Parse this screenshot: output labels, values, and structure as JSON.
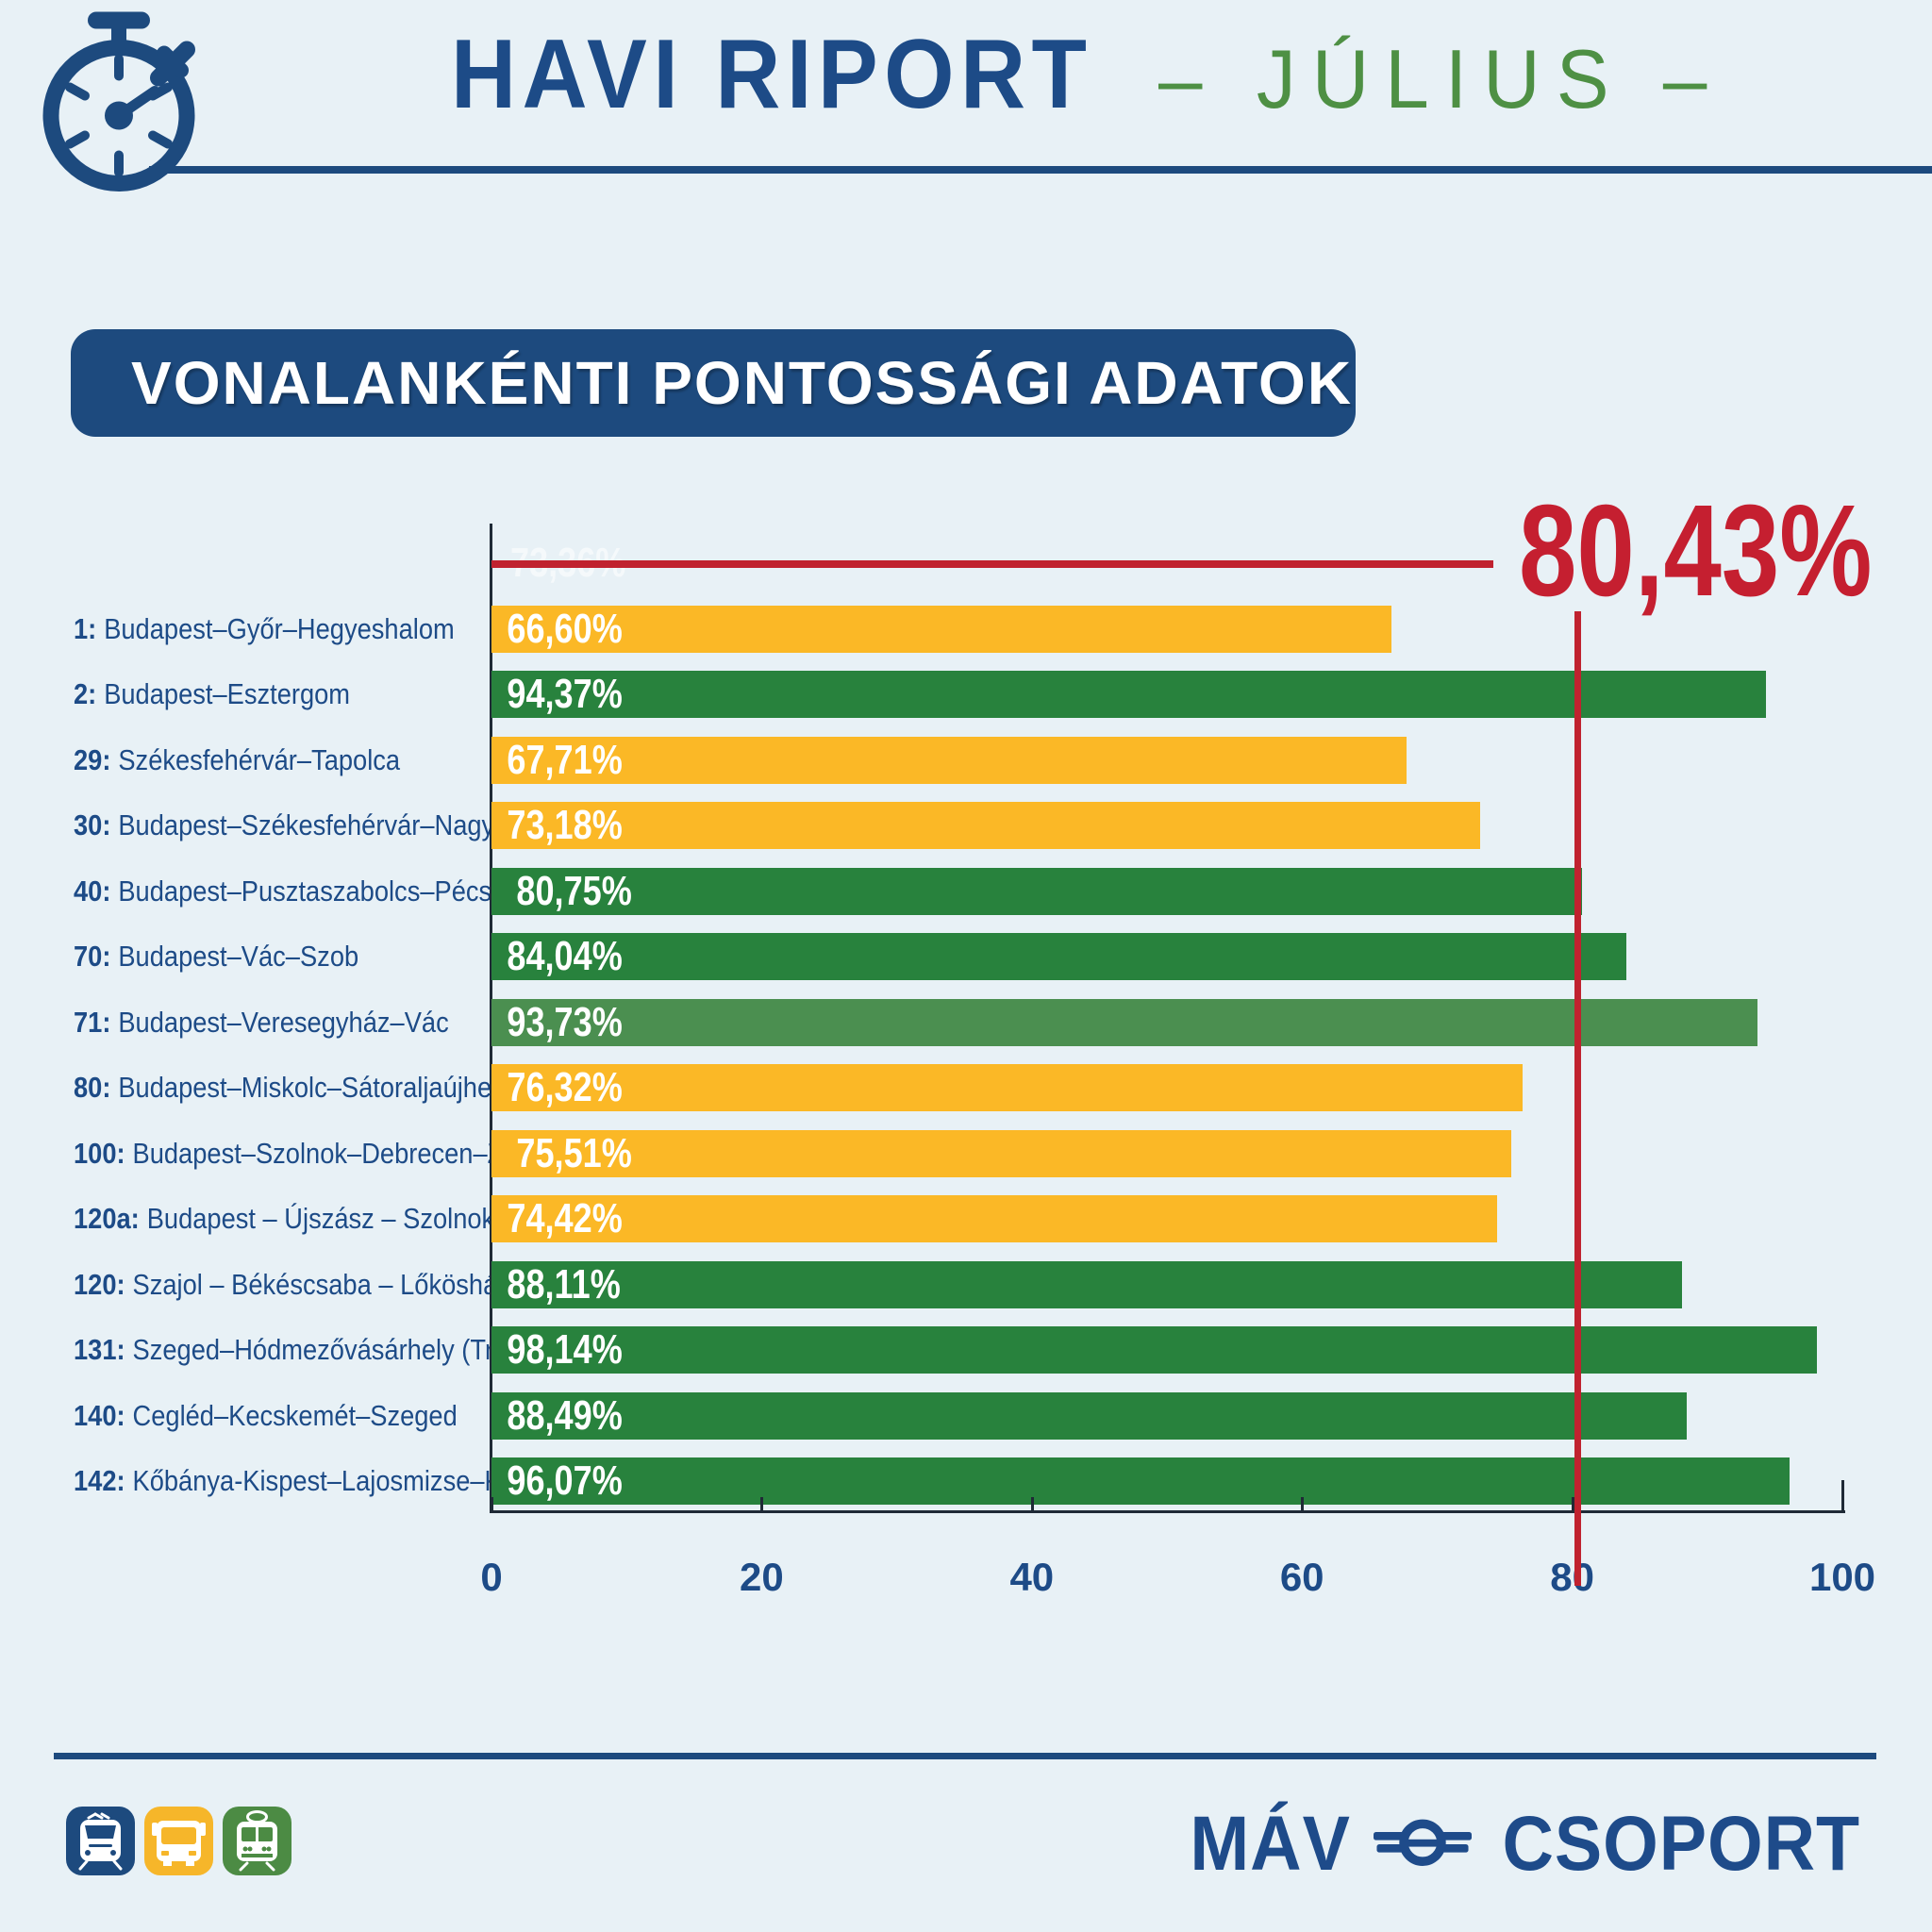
{
  "page": {
    "background": "#e8f1f6"
  },
  "header": {
    "title": "HAVI RIPORT",
    "subtitle": "– JÚLIUS –",
    "title_color": "#1d4b87",
    "subtitle_color": "#4e9044",
    "icon": "stopwatch-icon"
  },
  "section_heading": {
    "text": "VONALANKÉNTI PONTOSSÁGI ADATOK",
    "bg": "#1d4a7e",
    "text_color": "#ffffff"
  },
  "chart_data": {
    "type": "bar",
    "orientation": "horizontal",
    "title": "VONALANKÉNTI PONTOSSÁGI ADATOK",
    "xlim": [
      0,
      100
    ],
    "x_ticks": [
      "0",
      "20",
      "40",
      "60",
      "80",
      "100"
    ],
    "grid": false,
    "reference_line": {
      "value": 80.43,
      "label": "80,43%",
      "color": "#c51f30"
    },
    "hidden_leading_bar": {
      "label": "73,36%",
      "value": 73.36
    },
    "bar_colors": {
      "yellow": "#fbb826",
      "green": "#28823d",
      "light_green": "#4b8f50"
    },
    "value_text_color": "#ffffff",
    "rows": [
      {
        "line": "1:",
        "route": "Budapest–Győr–Hegyeshalom",
        "value": 66.6,
        "label": "66,60%",
        "color": "yellow"
      },
      {
        "line": "2:",
        "route": "Budapest–Esztergom",
        "value": 94.37,
        "label": "94,37%",
        "color": "green"
      },
      {
        "line": "29:",
        "route": "Székesfehérvár–Tapolca",
        "value": 67.71,
        "label": "67,71%",
        "color": "yellow"
      },
      {
        "line": "30:",
        "route": "Budapest–Székesfehérvár–Nagykanizsa",
        "value": 73.18,
        "label": "73,18%",
        "color": "yellow"
      },
      {
        "line": "40:",
        "route": "Budapest–Pusztaszabolcs–Pécs",
        "value": 80.75,
        "label": " 80,75%",
        "color": "green"
      },
      {
        "line": "70:",
        "route": "Budapest–Vác–Szob",
        "value": 84.04,
        "label": "84,04%",
        "color": "green"
      },
      {
        "line": "71:",
        "route": "Budapest–Veresegyház–Vác",
        "value": 93.73,
        "label": "93,73%",
        "color": "light_green"
      },
      {
        "line": "80:",
        "route": "Budapest–Miskolc–Sátoraljaújhely",
        "value": 76.32,
        "label": "76,32%",
        "color": "yellow"
      },
      {
        "line": "100:",
        "route": "Budapest–Szolnok–Debrecen–Záhony",
        "value": 75.51,
        "label": " 75,51%",
        "color": "yellow"
      },
      {
        "line": "120a:",
        "route": "Budapest – Újszász – Szolnok",
        "value": 74.42,
        "label": "74,42%",
        "color": "yellow"
      },
      {
        "line": "120:",
        "route": "Szajol – Békéscsaba – Lőkösháza",
        "value": 88.11,
        "label": "88,11%",
        "color": "green"
      },
      {
        "line": "131:",
        "route": "Szeged–Hódmezővásárhely (TramTrain)",
        "value": 98.14,
        "label": "98,14%",
        "color": "green"
      },
      {
        "line": "140:",
        "route": "Cegléd–Kecskemét–Szeged",
        "value": 88.49,
        "label": "88,49%",
        "color": "green"
      },
      {
        "line": "142:",
        "route": "Kőbánya-Kispest–Lajosmizse–Kecskemét",
        "value": 96.07,
        "label": "96,07%",
        "color": "green"
      }
    ]
  },
  "footer": {
    "icons": [
      {
        "name": "train-icon",
        "bg": "#1d4a7e"
      },
      {
        "name": "bus-icon",
        "bg": "#f6b62a"
      },
      {
        "name": "tram-icon",
        "bg": "#4c8b44"
      }
    ],
    "logo": {
      "text_left": "MÁV",
      "text_right": "CSOPORT",
      "emblem": "mav-winged-wheel-icon",
      "color": "#1e4b8a"
    }
  }
}
